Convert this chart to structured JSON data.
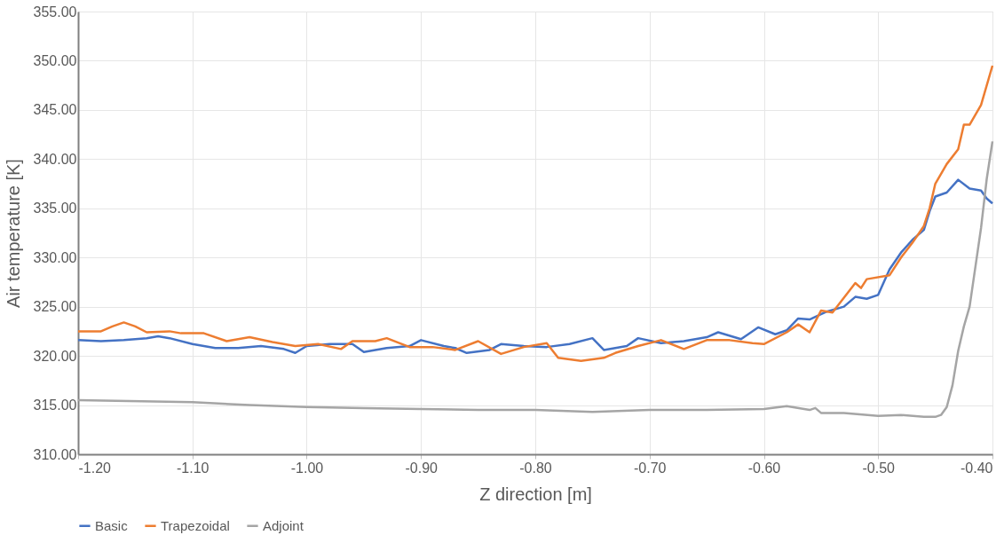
{
  "chart_data": {
    "type": "line",
    "xlabel": "Z direction [m]",
    "ylabel": "Air temperature [K]",
    "xlim": [
      -1.2,
      -0.4
    ],
    "ylim": [
      310,
      355
    ],
    "xticks": [
      {
        "value": -1.2,
        "label": "-1.20"
      },
      {
        "value": -1.1,
        "label": "-1.10"
      },
      {
        "value": -1.0,
        "label": "-1.00"
      },
      {
        "value": -0.9,
        "label": "-0.90"
      },
      {
        "value": -0.8,
        "label": "-0.80"
      },
      {
        "value": -0.7,
        "label": "-0.70"
      },
      {
        "value": -0.6,
        "label": "-0.60"
      },
      {
        "value": -0.5,
        "label": "-0.50"
      },
      {
        "value": -0.4,
        "label": "-0.40"
      }
    ],
    "yticks": [
      {
        "value": 310,
        "label": "310.00"
      },
      {
        "value": 315,
        "label": "315.00"
      },
      {
        "value": 320,
        "label": "320.00"
      },
      {
        "value": 325,
        "label": "325.00"
      },
      {
        "value": 330,
        "label": "330.00"
      },
      {
        "value": 335,
        "label": "335.00"
      },
      {
        "value": 340,
        "label": "340.00"
      },
      {
        "value": 345,
        "label": "345.00"
      },
      {
        "value": 350,
        "label": "350.00"
      },
      {
        "value": 355,
        "label": "355.00"
      }
    ],
    "grid": true,
    "legend": "bottom",
    "marker": "none",
    "line_style": "solid",
    "series": [
      {
        "name": "Basic",
        "color": "#4472c4",
        "x": [
          -1.2,
          -1.18,
          -1.16,
          -1.14,
          -1.13,
          -1.12,
          -1.1,
          -1.08,
          -1.06,
          -1.04,
          -1.02,
          -1.01,
          -1.0,
          -0.98,
          -0.96,
          -0.95,
          -0.93,
          -0.91,
          -0.9,
          -0.88,
          -0.87,
          -0.86,
          -0.84,
          -0.83,
          -0.81,
          -0.79,
          -0.77,
          -0.75,
          -0.74,
          -0.72,
          -0.71,
          -0.69,
          -0.67,
          -0.65,
          -0.64,
          -0.62,
          -0.605,
          -0.59,
          -0.58,
          -0.57,
          -0.56,
          -0.545,
          -0.53,
          -0.52,
          -0.51,
          -0.5,
          -0.49,
          -0.48,
          -0.47,
          -0.46,
          -0.455,
          -0.45,
          -0.44,
          -0.43,
          -0.42,
          -0.41,
          -0.405,
          -0.4
        ],
        "values": [
          321.6,
          321.5,
          321.6,
          321.8,
          322.0,
          321.8,
          321.2,
          320.8,
          320.8,
          321.0,
          320.7,
          320.3,
          321.0,
          321.2,
          321.2,
          320.4,
          320.8,
          321.0,
          321.6,
          321.0,
          320.8,
          320.3,
          320.6,
          321.2,
          321.0,
          320.9,
          321.2,
          321.8,
          320.6,
          321.0,
          321.8,
          321.3,
          321.5,
          321.9,
          322.4,
          321.7,
          322.9,
          322.2,
          322.6,
          323.8,
          323.7,
          324.5,
          325.0,
          326.0,
          325.8,
          326.2,
          328.8,
          330.5,
          331.8,
          332.8,
          334.7,
          336.2,
          336.6,
          337.9,
          337.0,
          336.8,
          336.0,
          335.5
        ]
      },
      {
        "name": "Trapezoidal",
        "color": "#ed7d31",
        "x": [
          -1.2,
          -1.18,
          -1.17,
          -1.16,
          -1.15,
          -1.14,
          -1.12,
          -1.11,
          -1.09,
          -1.07,
          -1.05,
          -1.03,
          -1.01,
          -0.99,
          -0.97,
          -0.96,
          -0.94,
          -0.93,
          -0.91,
          -0.89,
          -0.87,
          -0.85,
          -0.83,
          -0.81,
          -0.79,
          -0.78,
          -0.76,
          -0.74,
          -0.73,
          -0.71,
          -0.69,
          -0.67,
          -0.65,
          -0.63,
          -0.61,
          -0.6,
          -0.58,
          -0.57,
          -0.56,
          -0.55,
          -0.54,
          -0.52,
          -0.515,
          -0.51,
          -0.49,
          -0.48,
          -0.47,
          -0.46,
          -0.455,
          -0.45,
          -0.44,
          -0.43,
          -0.425,
          -0.42,
          -0.41,
          -0.4
        ],
        "values": [
          322.5,
          322.5,
          323.0,
          323.4,
          323.0,
          322.4,
          322.5,
          322.3,
          322.3,
          321.5,
          321.9,
          321.4,
          321.0,
          321.2,
          320.7,
          321.5,
          321.5,
          321.8,
          320.9,
          320.9,
          320.6,
          321.5,
          320.2,
          320.9,
          321.3,
          319.8,
          319.5,
          319.8,
          320.3,
          321.0,
          321.6,
          320.7,
          321.6,
          321.6,
          321.3,
          321.2,
          322.4,
          323.2,
          322.4,
          324.6,
          324.4,
          327.4,
          326.9,
          327.8,
          328.2,
          330.0,
          331.5,
          333.2,
          335.0,
          337.5,
          339.5,
          341.0,
          343.5,
          343.5,
          345.5,
          349.5
        ]
      },
      {
        "name": "Adjoint",
        "color": "#a5a5a5",
        "x": [
          -1.2,
          -1.1,
          -1.05,
          -1.0,
          -0.95,
          -0.9,
          -0.85,
          -0.8,
          -0.75,
          -0.7,
          -0.65,
          -0.6,
          -0.58,
          -0.56,
          -0.555,
          -0.55,
          -0.53,
          -0.5,
          -0.48,
          -0.46,
          -0.45,
          -0.445,
          -0.44,
          -0.435,
          -0.43,
          -0.425,
          -0.42,
          -0.415,
          -0.41,
          -0.405,
          -0.4
        ],
        "values": [
          315.5,
          315.3,
          315.0,
          314.8,
          314.7,
          314.6,
          314.5,
          314.5,
          314.3,
          314.5,
          314.5,
          314.6,
          314.9,
          314.5,
          314.7,
          314.2,
          314.2,
          313.9,
          314.0,
          313.8,
          313.8,
          314.0,
          314.8,
          317.0,
          320.5,
          323.0,
          325.0,
          329.0,
          333.0,
          338.0,
          341.8
        ]
      }
    ]
  }
}
